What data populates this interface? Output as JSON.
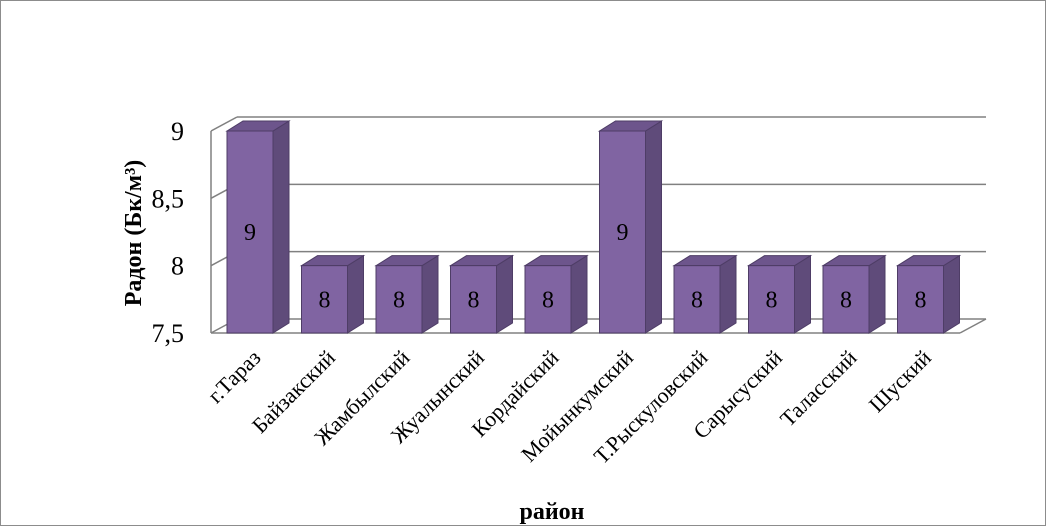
{
  "chart_data": {
    "type": "bar",
    "title": "",
    "xlabel": "район",
    "ylabel": "Радон (Бк/м³)",
    "categories": [
      "г.Тараз",
      "Байзакский",
      "Жамбылский",
      "Жуалынский",
      "Кордайский",
      "Мойынкумский",
      "Т.Рыскуловский",
      "Сарысуский",
      "Таласский",
      "Шуский"
    ],
    "values": [
      9,
      8,
      8,
      8,
      8,
      9,
      8,
      8,
      8,
      8
    ],
    "data_labels": [
      "9",
      "8",
      "8",
      "8",
      "8",
      "9",
      "8",
      "8",
      "8",
      "8"
    ],
    "ylim": [
      7.5,
      9
    ],
    "yticks": [
      7.5,
      8,
      8.5,
      9
    ],
    "ytick_labels": [
      "7,5",
      "8",
      "8,5",
      "9"
    ],
    "grid": true,
    "three_d": true,
    "legend": "none",
    "colors": {
      "bar_front": "#8064a2",
      "bar_side": "#5f4b7a",
      "bar_top": "#6d558c",
      "bar_edge": "#4e3d66",
      "grid": "#808080"
    }
  }
}
